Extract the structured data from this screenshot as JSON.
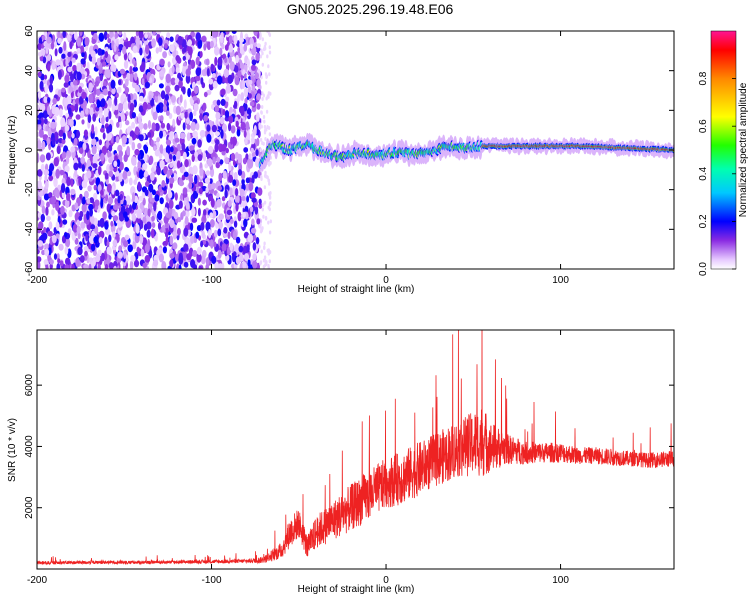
{
  "title": "GN05.2025.296.19.48.E06",
  "colors": {
    "snr_line": "#ee2222",
    "frame": "#000000",
    "background": "#ffffff"
  },
  "chart_data": [
    {
      "type": "heatmap",
      "xlabel": "Height of straight line (km)",
      "ylabel": "Frequency (Hz)",
      "xlim": [
        -200,
        165
      ],
      "ylim": [
        -60,
        60
      ],
      "xticks": [
        -200,
        -100,
        0,
        100
      ],
      "yticks": [
        -60,
        -40,
        -20,
        0,
        20,
        40,
        60
      ],
      "colorbar": {
        "label": "Normalized spectral amplitude",
        "range": [
          0,
          1
        ],
        "ticks": [
          0.0,
          0.2,
          0.4,
          0.6,
          0.8
        ],
        "tick_labels": [
          "0.0",
          "0.2",
          "0.4",
          "0.6",
          "0.8"
        ]
      },
      "regions": [
        {
          "x_range": [
            -200,
            -72
          ],
          "description": "broadband noise",
          "amplitude": 0.15
        },
        {
          "x_range": [
            -72,
            55
          ],
          "description": "narrow band near 0 Hz, wandering",
          "amplitude": 0.45
        },
        {
          "x_range": [
            55,
            165
          ],
          "description": "strong narrow band at ~2 Hz",
          "amplitude": 0.95
        }
      ],
      "ridge": {
        "x": [
          -72,
          -65,
          -55,
          -45,
          -35,
          -25,
          -15,
          -5,
          5,
          15,
          25,
          35,
          45,
          55,
          75,
          95,
          115,
          135,
          165
        ],
        "freq": [
          -7,
          3,
          0,
          3,
          -2,
          -4,
          -1,
          -3,
          -1,
          -2,
          -1,
          2,
          1,
          2,
          2,
          2,
          2,
          1,
          0
        ]
      }
    },
    {
      "type": "line",
      "xlabel": "Height of straight line (km)",
      "ylabel": "SNR (10 * v/v)",
      "xlim": [
        -200,
        165
      ],
      "ylim": [
        0,
        7800
      ],
      "xticks": [
        -200,
        -100,
        0,
        100
      ],
      "yticks": [
        2000,
        4000,
        6000
      ],
      "series": [
        {
          "name": "SNR",
          "x": [
            -200,
            -180,
            -160,
            -140,
            -120,
            -100,
            -80,
            -70,
            -60,
            -55,
            -50,
            -45,
            -40,
            -35,
            -30,
            -25,
            -20,
            -10,
            0,
            10,
            20,
            30,
            40,
            45,
            50,
            55,
            60,
            70,
            80,
            90,
            100,
            110,
            120,
            130,
            140,
            150,
            165
          ],
          "baseline": [
            200,
            210,
            220,
            220,
            230,
            240,
            260,
            300,
            600,
            1200,
            1500,
            700,
            1200,
            1400,
            1600,
            1800,
            2000,
            2400,
            2800,
            3000,
            3300,
            3600,
            3900,
            4000,
            4100,
            4200,
            4000,
            3900,
            3800,
            3800,
            3800,
            3700,
            3700,
            3650,
            3600,
            3550,
            3600
          ],
          "spread": [
            100,
            100,
            100,
            100,
            100,
            110,
            120,
            200,
            500,
            900,
            900,
            700,
            1000,
            1100,
            1200,
            1300,
            1400,
            1500,
            1500,
            1600,
            1600,
            1600,
            1700,
            1800,
            1900,
            2200,
            1500,
            900,
            700,
            600,
            600,
            500,
            500,
            500,
            450,
            450,
            500
          ]
        }
      ]
    }
  ]
}
